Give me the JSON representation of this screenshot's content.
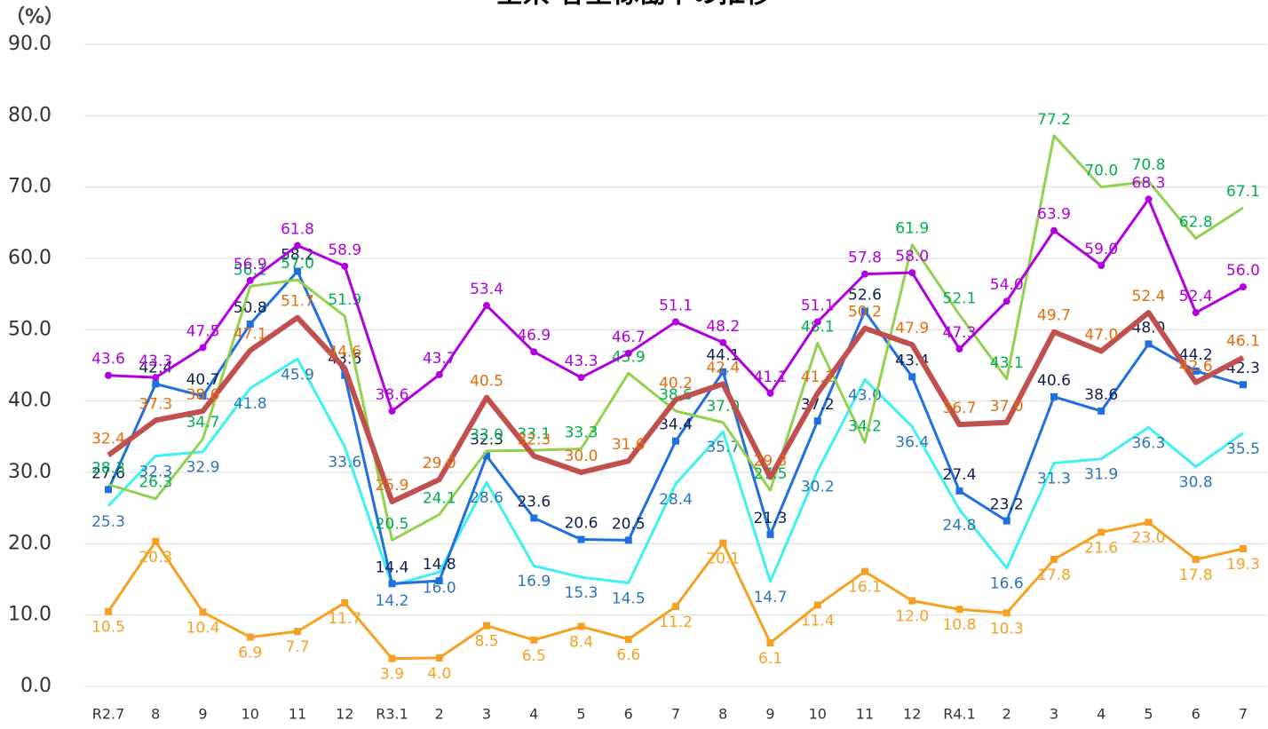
{
  "chart_data": {
    "type": "line",
    "title": "全県 客室稼働率の推移",
    "y_label": "（%）",
    "categories": [
      "R2.7",
      "8",
      "9",
      "10",
      "11",
      "12",
      "R3.1",
      "2",
      "3",
      "4",
      "5",
      "6",
      "7",
      "8",
      "9",
      "10",
      "11",
      "12",
      "R4.1",
      "2",
      "3",
      "4",
      "5",
      "6",
      "7"
    ],
    "ylim": [
      0,
      90
    ],
    "yticks": [
      {
        "value": 0,
        "label": "0.0"
      },
      {
        "value": 10,
        "label": "10.0"
      },
      {
        "value": 20,
        "label": "20.0"
      },
      {
        "value": 30,
        "label": "30.0"
      },
      {
        "value": 40,
        "label": "40.0"
      },
      {
        "value": 50,
        "label": "50.0"
      },
      {
        "value": 60,
        "label": "60.0"
      },
      {
        "value": 70,
        "label": "70.0"
      },
      {
        "value": 80,
        "label": "80.0"
      },
      {
        "value": 90,
        "label": "90.0"
      }
    ],
    "grid": true,
    "label_decimals": 1,
    "series": [
      {
        "color": "#f5a020",
        "label_color": "#f5a020",
        "marker": "square",
        "width": 3,
        "label_side": "below",
        "values": [
          10.5,
          20.3,
          10.4,
          6.9,
          7.7,
          11.7,
          3.9,
          4.0,
          8.5,
          6.5,
          8.4,
          6.6,
          11.2,
          20.1,
          6.1,
          11.4,
          16.1,
          12.0,
          10.8,
          10.3,
          17.8,
          21.6,
          23.0,
          17.8,
          19.3
        ]
      },
      {
        "color": "#3ff0f0",
        "label_color": "#2e75b6",
        "marker": "none",
        "width": 3,
        "label_side": "below",
        "values": [
          25.3,
          32.3,
          32.9,
          41.8,
          45.9,
          33.6,
          14.2,
          16.0,
          28.6,
          16.9,
          15.3,
          14.5,
          28.4,
          35.7,
          14.7,
          30.2,
          43.0,
          36.4,
          24.8,
          16.6,
          31.3,
          31.9,
          36.3,
          30.8,
          35.5
        ]
      },
      {
        "color": "#1f6fe0",
        "label_color": "#0d1f4a",
        "marker": "square",
        "width": 3,
        "label_side": "above",
        "values": [
          27.6,
          42.4,
          40.7,
          50.8,
          58.2,
          43.6,
          14.4,
          14.8,
          32.3,
          23.6,
          20.6,
          20.5,
          34.4,
          44.1,
          21.3,
          37.2,
          52.6,
          43.4,
          27.4,
          23.2,
          40.6,
          38.6,
          48.0,
          44.2,
          42.3
        ]
      },
      {
        "color": "#92d050",
        "label_color": "#00b050",
        "marker": "none",
        "width": 3,
        "label_side": "above",
        "values": [
          28.3,
          26.3,
          34.7,
          56.1,
          57.0,
          51.9,
          20.5,
          24.1,
          33.0,
          33.1,
          33.3,
          43.9,
          38.6,
          37.0,
          27.5,
          48.1,
          34.2,
          61.9,
          52.1,
          43.1,
          77.2,
          70.0,
          70.8,
          62.8,
          67.1
        ]
      },
      {
        "color": "#c0504d",
        "label_color": "#e46c0a",
        "marker": "none",
        "width": 6,
        "label_side": "above",
        "values": [
          32.4,
          37.3,
          38.6,
          47.1,
          51.7,
          44.6,
          25.9,
          29.0,
          40.5,
          32.3,
          30.0,
          31.6,
          40.2,
          42.4,
          29.3,
          41.1,
          50.2,
          47.9,
          36.7,
          37.0,
          49.7,
          47.0,
          52.4,
          42.6,
          46.1
        ]
      },
      {
        "color": "#b000e0",
        "label_color": "#b000e0",
        "marker": "circle",
        "width": 3,
        "label_side": "above",
        "values": [
          43.6,
          43.3,
          47.5,
          56.9,
          61.8,
          58.9,
          38.6,
          43.7,
          53.4,
          46.9,
          43.3,
          46.7,
          51.1,
          48.2,
          41.1,
          51.1,
          57.8,
          58.0,
          47.3,
          54.0,
          63.9,
          59.0,
          68.3,
          52.4,
          56.0
        ]
      }
    ]
  }
}
